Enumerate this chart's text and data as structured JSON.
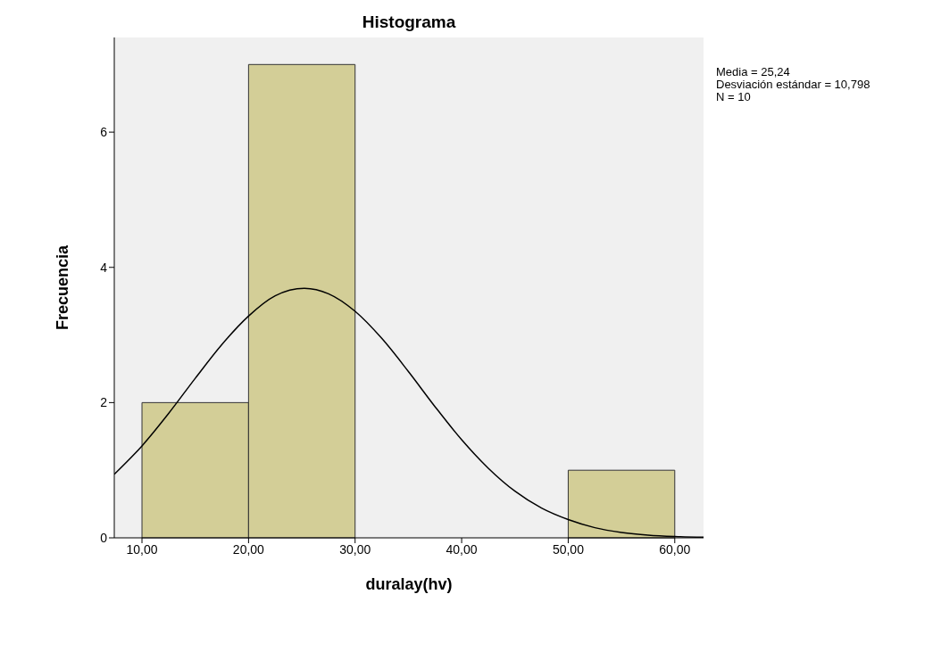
{
  "chart_data": {
    "type": "histogram",
    "title": "Histograma",
    "xlabel": "duralay(hv)",
    "ylabel": "Frecuencia",
    "bins": [
      10,
      20,
      30,
      40,
      50,
      60
    ],
    "values": [
      2,
      7,
      0,
      0,
      1
    ],
    "color": "#d3ce97",
    "series": [
      {
        "type": "line",
        "color": "#000000",
        "x": [
          7.4,
          10,
          12.5,
          15,
          17.5,
          20,
          22.5,
          25.24,
          27.5,
          30,
          32.5,
          35,
          37.5,
          40,
          42.5,
          45,
          47.5,
          50,
          52.5,
          55,
          57.5,
          60,
          62.7
        ],
        "values": [
          0.94,
          1.36,
          1.84,
          2.36,
          2.86,
          3.28,
          3.58,
          3.69,
          3.61,
          3.35,
          2.95,
          2.46,
          1.94,
          1.45,
          1.03,
          0.69,
          0.44,
          0.27,
          0.15,
          0.08,
          0.04,
          0.02,
          0.01
        ]
      }
    ],
    "xlim": [
      7.4,
      62.7
    ],
    "xticks": [
      {
        "value": 10,
        "label": "10,00"
      },
      {
        "value": 20,
        "label": "20,00"
      },
      {
        "value": 30,
        "label": "30,00"
      },
      {
        "value": 40,
        "label": "40,00"
      },
      {
        "value": 50,
        "label": "50,00"
      },
      {
        "value": 60,
        "label": "60,00"
      }
    ],
    "ylim": [
      0,
      7.4
    ],
    "yticks": [
      0,
      2,
      4,
      6
    ],
    "grid": false,
    "annotations": [
      "Media = 25,24",
      "Desviación estándar = 10,798",
      "N = 10"
    ]
  }
}
